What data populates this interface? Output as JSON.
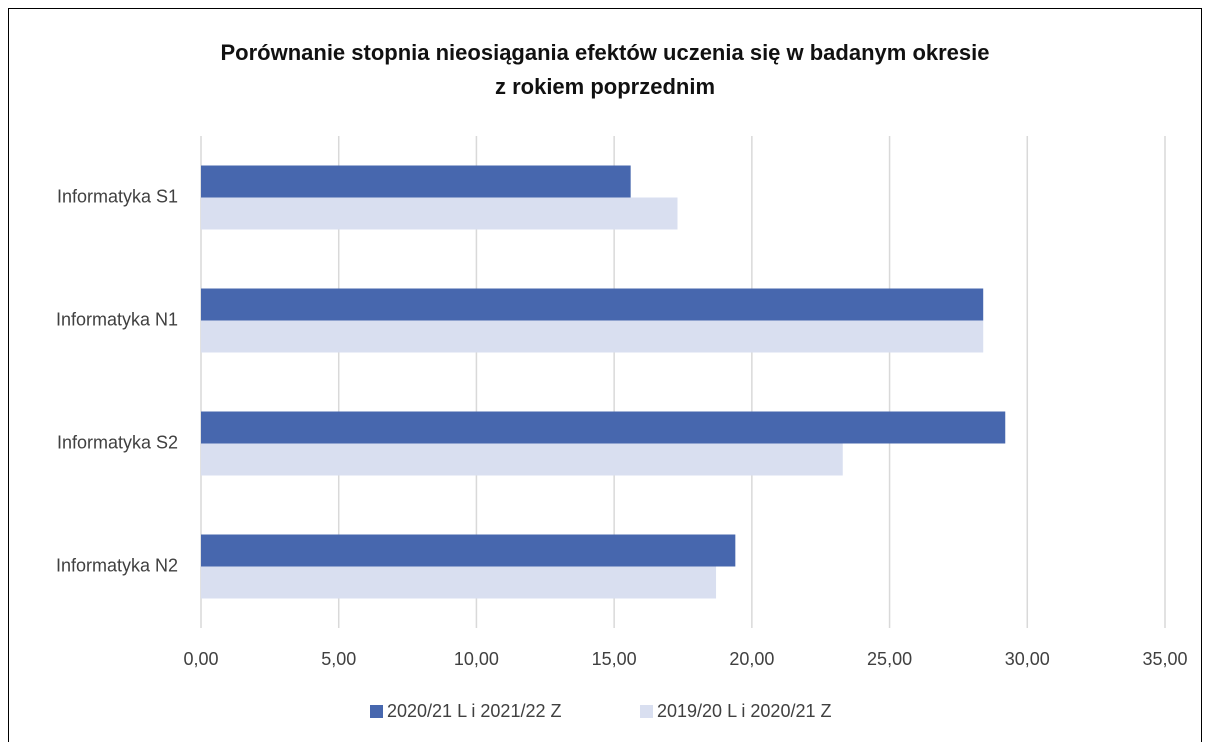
{
  "chart_data": {
    "type": "barh",
    "title": [
      "Porównanie stopnia nieosiągania efektów uczenia się w badanym okresie",
      "z rokiem poprzednim"
    ],
    "categories": [
      "Informatyka S1",
      "Informatyka N1",
      "Informatyka S2",
      "Informatyka N2"
    ],
    "series": [
      {
        "name": "2020/21 L i 2021/22 Z",
        "color": "#4767ae",
        "values": [
          15.6,
          28.4,
          29.2,
          19.4
        ]
      },
      {
        "name": "2019/20 L i 2020/21 Z",
        "color": "#d9dff0",
        "values": [
          17.3,
          28.4,
          23.3,
          18.7
        ]
      }
    ],
    "xlim": [
      0,
      35
    ],
    "xticks": [
      {
        "value": 0,
        "label": "0,00"
      },
      {
        "value": 5,
        "label": "5,00"
      },
      {
        "value": 10,
        "label": "10,00"
      },
      {
        "value": 15,
        "label": "15,00"
      },
      {
        "value": 20,
        "label": "20,00"
      },
      {
        "value": 25,
        "label": "25,00"
      },
      {
        "value": 30,
        "label": "30,00"
      },
      {
        "value": 35,
        "label": "35,00"
      }
    ],
    "grid": true,
    "legend": "bottom"
  }
}
